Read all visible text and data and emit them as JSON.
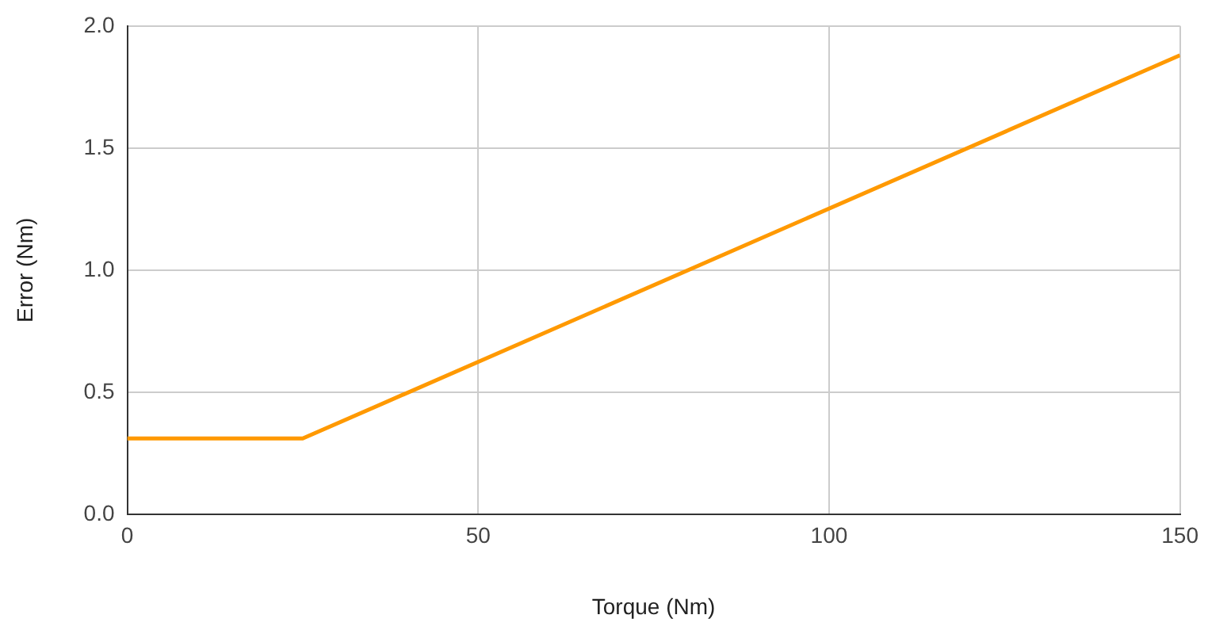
{
  "chart_data": {
    "type": "line",
    "xlabel": "Torque (Nm)",
    "ylabel": "Error (Nm)",
    "series": [
      {
        "color": "#ff9900",
        "x": [
          0,
          25,
          150
        ],
        "values": [
          0.31,
          0.31,
          1.88
        ]
      }
    ],
    "xlim": [
      0,
      150
    ],
    "xticks": [
      0,
      50,
      100,
      150
    ],
    "ylim": [
      0,
      2
    ],
    "yticks": [
      {
        "value": 0,
        "label": "0.0"
      },
      {
        "value": 0.5,
        "label": "0.5"
      },
      {
        "value": 1,
        "label": "1.0"
      },
      {
        "value": 1.5,
        "label": "1.5"
      },
      {
        "value": 2,
        "label": "2.0"
      }
    ],
    "grid": true,
    "legend": false,
    "marker": "none",
    "line_style": "solid"
  }
}
